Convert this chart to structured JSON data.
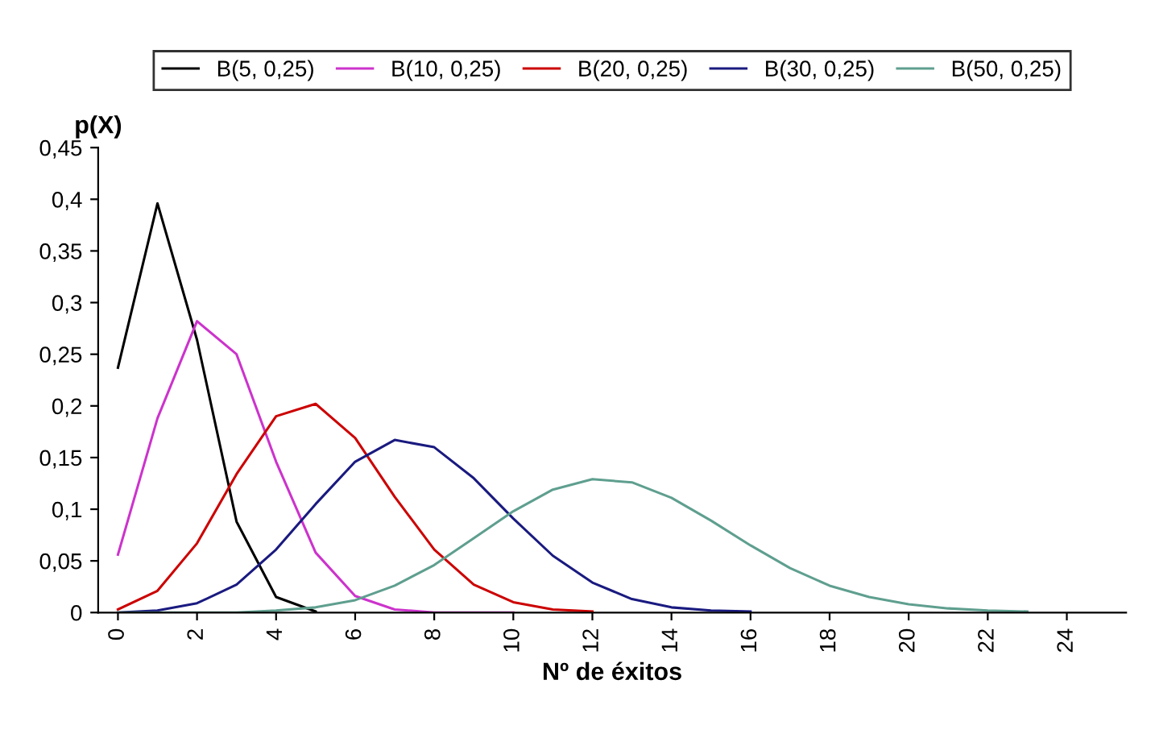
{
  "chart_data": {
    "type": "line",
    "xlabel": "Nº de éxitos",
    "ylabel": "p(X)",
    "xlim": [
      -0.5,
      25.5
    ],
    "xticks": [
      0,
      2,
      4,
      6,
      8,
      10,
      12,
      14,
      16,
      18,
      20,
      22,
      24
    ],
    "ylim": [
      0,
      0.45
    ],
    "yticks": [
      0,
      {
        "value": 0.05,
        "label": "0,05"
      },
      {
        "value": 0.1,
        "label": "0,1"
      },
      {
        "value": 0.15,
        "label": "0,15"
      },
      {
        "value": 0.2,
        "label": "0,2"
      },
      {
        "value": 0.25,
        "label": "0,25"
      },
      {
        "value": 0.3,
        "label": "0,3"
      },
      {
        "value": 0.35,
        "label": "0,35"
      },
      {
        "value": 0.4,
        "label": "0,4"
      },
      {
        "value": 0.45,
        "label": "0,45"
      }
    ],
    "grid": false,
    "legend": "top",
    "marker": "none",
    "line_style": "solid",
    "series": [
      {
        "name": "B(5, 0,25)",
        "color": "#000000",
        "x": [
          0,
          1,
          2,
          3,
          4,
          5
        ],
        "values": [
          0.237,
          0.396,
          0.264,
          0.088,
          0.015,
          0.001
        ]
      },
      {
        "name": "B(10, 0,25)",
        "color": "#cc33cc",
        "x": [
          0,
          1,
          2,
          3,
          4,
          5,
          6,
          7,
          8,
          9,
          10
        ],
        "values": [
          0.056,
          0.188,
          0.282,
          0.25,
          0.146,
          0.058,
          0.016,
          0.003,
          0.0,
          0.0,
          0.0
        ]
      },
      {
        "name": "B(20, 0,25)",
        "color": "#cc0000",
        "x": [
          0,
          1,
          2,
          3,
          4,
          5,
          6,
          7,
          8,
          9,
          10,
          11,
          12
        ],
        "values": [
          0.003,
          0.021,
          0.067,
          0.134,
          0.19,
          0.202,
          0.169,
          0.112,
          0.061,
          0.027,
          0.01,
          0.003,
          0.001
        ]
      },
      {
        "name": "B(30, 0,25)",
        "color": "#1a1a80",
        "x": [
          0,
          1,
          2,
          3,
          4,
          5,
          6,
          7,
          8,
          9,
          10,
          11,
          12,
          13,
          14,
          15,
          16
        ],
        "values": [
          0.0,
          0.002,
          0.009,
          0.027,
          0.061,
          0.105,
          0.146,
          0.167,
          0.16,
          0.13,
          0.091,
          0.055,
          0.029,
          0.013,
          0.005,
          0.002,
          0.001
        ]
      },
      {
        "name": "B(50, 0,25)",
        "color": "#5f9f8f",
        "x": [
          0,
          1,
          2,
          3,
          4,
          5,
          6,
          7,
          8,
          9,
          10,
          11,
          12,
          13,
          14,
          15,
          16,
          17,
          18,
          19,
          20,
          21,
          22,
          23
        ],
        "values": [
          0.0,
          0.0,
          0.0,
          0.0,
          0.002,
          0.005,
          0.012,
          0.026,
          0.046,
          0.072,
          0.098,
          0.119,
          0.129,
          0.126,
          0.111,
          0.089,
          0.065,
          0.043,
          0.026,
          0.015,
          0.008,
          0.004,
          0.002,
          0.001
        ]
      }
    ]
  }
}
